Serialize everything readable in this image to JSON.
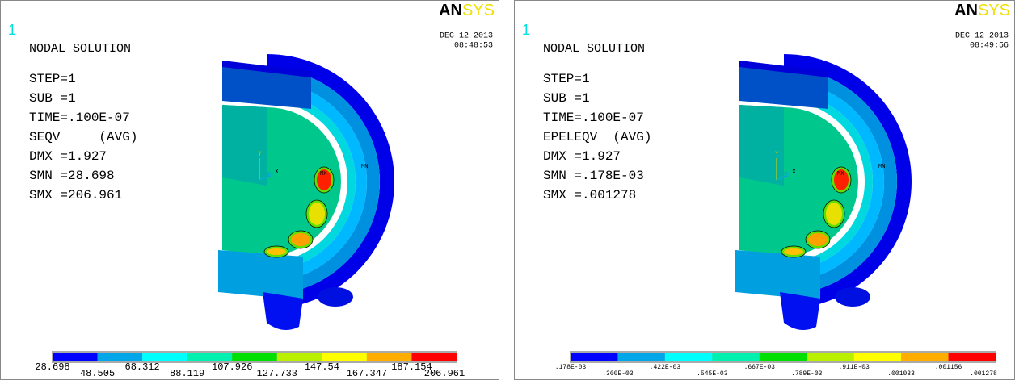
{
  "panels": [
    {
      "window_number": "1",
      "logo": {
        "an": "AN",
        "sys": "SYS"
      },
      "date": "DEC 12 2013",
      "time": "08:48:53",
      "title": "NODAL SOLUTION",
      "info": [
        "STEP=1",
        "SUB =1",
        "TIME=.100E-07",
        "SEQV     (AVG)",
        "DMX =1.927",
        "SMN =28.698",
        "SMX =206.961"
      ],
      "triad": {
        "y": "Y",
        "x": "X",
        "z": "Z"
      },
      "labels": {
        "mx": "MX",
        "mn": "MN"
      },
      "legend": [
        "28.698",
        "48.505",
        "68.312",
        "88.119",
        "107.926",
        "127.733",
        "147.54",
        "167.347",
        "187.154",
        "206.961"
      ]
    },
    {
      "window_number": "1",
      "logo": {
        "an": "AN",
        "sys": "SYS"
      },
      "date": "DEC 12 2013",
      "time": "08:49:56",
      "title": "NODAL SOLUTION",
      "info": [
        "STEP=1",
        "SUB =1",
        "TIME=.100E-07",
        "EPELEQV  (AVG)",
        "DMX =1.927",
        "SMN =.178E-03",
        "SMX =.001278"
      ],
      "triad": {
        "y": "Y",
        "x": "X",
        "z": "Z"
      },
      "labels": {
        "mx": "MX",
        "mn": "MN"
      },
      "legend": [
        ".178E-03",
        ".300E-03",
        ".422E-03",
        ".545E-03",
        ".667E-03",
        ".789E-03",
        ".911E-03",
        ".001033",
        ".001156",
        ".001278"
      ]
    }
  ]
}
